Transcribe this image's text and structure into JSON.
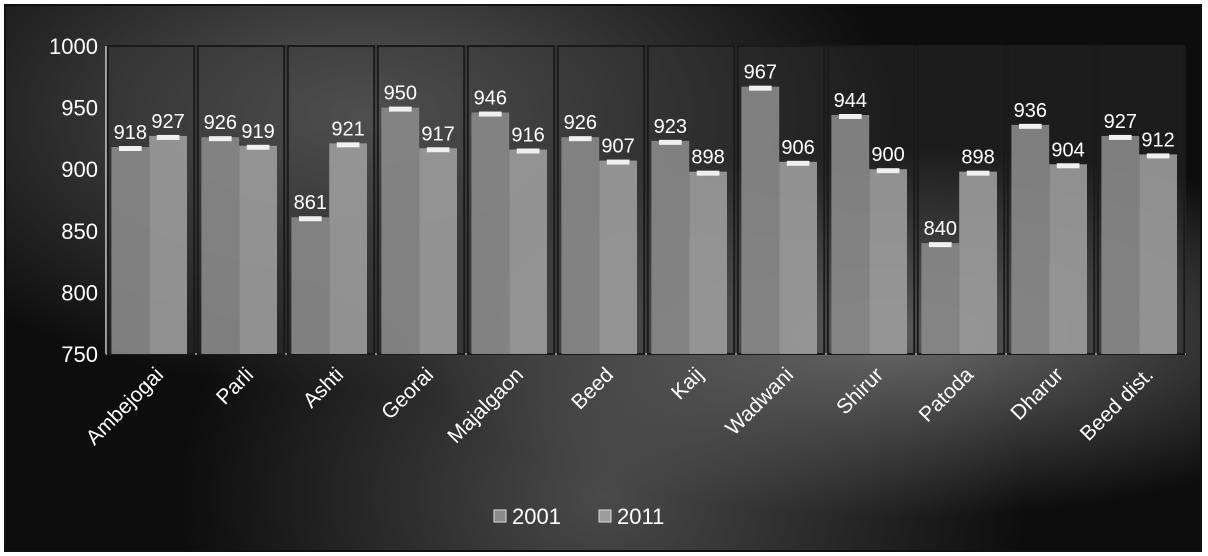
{
  "chart_data": {
    "type": "bar",
    "categories": [
      "Ambejogai",
      "Parli",
      "Ashti",
      "Georai",
      "Majalgaon",
      "Beed",
      "Kaij",
      "Wadwani",
      "Shirur",
      "Patoda",
      "Dharur",
      "Beed dist."
    ],
    "series": [
      {
        "name": "2001",
        "values": [
          918,
          926,
          861,
          950,
          946,
          926,
          923,
          967,
          944,
          840,
          936,
          927
        ]
      },
      {
        "name": "2011",
        "values": [
          927,
          919,
          921,
          917,
          916,
          907,
          898,
          906,
          900,
          898,
          904,
          912
        ]
      }
    ],
    "ylim": [
      750,
      1000
    ],
    "yticks": [
      "750",
      "800",
      "850",
      "900",
      "950",
      "1000"
    ],
    "legend_position": "bottom",
    "grid": false,
    "colors": {
      "2001": "#8a8a8a",
      "2011": "#9c9c9c",
      "background": "#0d0d0d"
    }
  }
}
